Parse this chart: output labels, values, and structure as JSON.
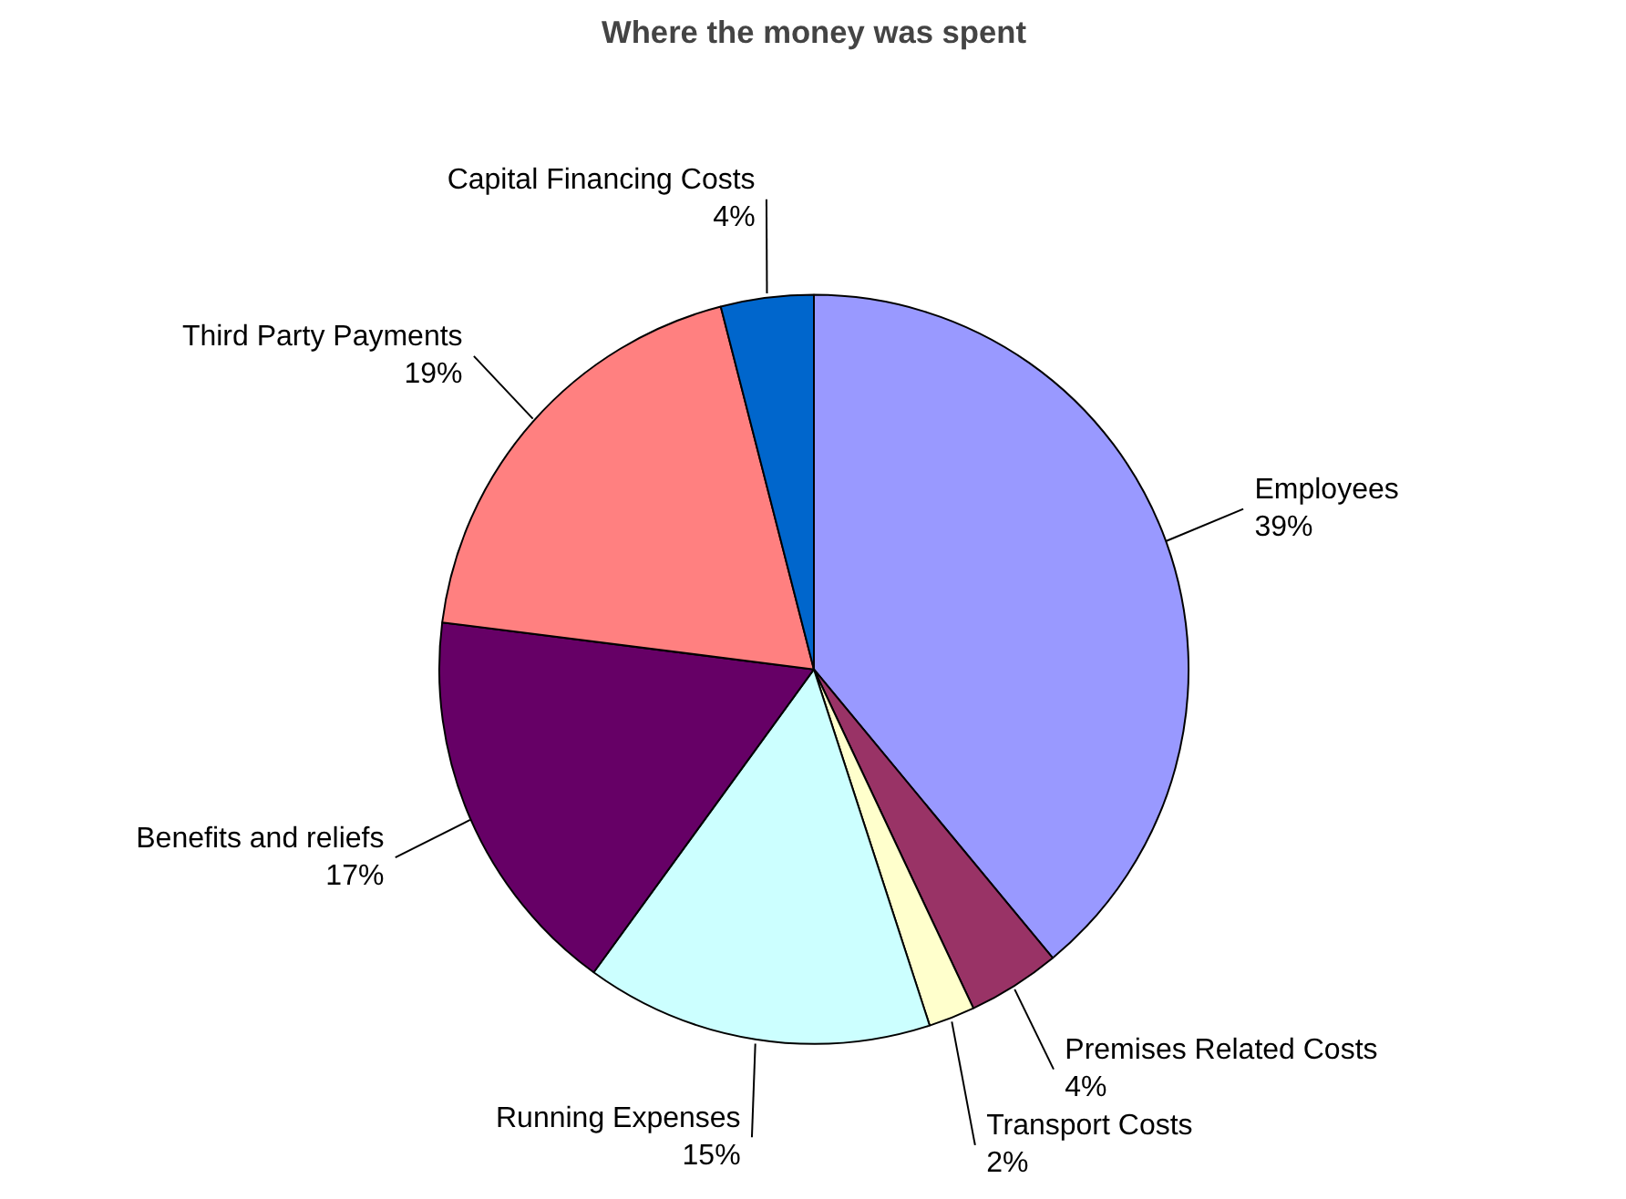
{
  "chart_data": {
    "type": "pie",
    "title": "Where the money was spent",
    "categories": [
      "Employees",
      "Premises Related Costs",
      "Transport Costs",
      "Running Expenses",
      "Benefits and reliefs",
      "Third Party Payments",
      "Capital Financing Costs"
    ],
    "values": [
      39,
      4,
      2,
      15,
      17,
      19,
      4
    ],
    "value_labels": [
      "39%",
      "4%",
      "2%",
      "15%",
      "17%",
      "19%",
      "4%"
    ],
    "colors": [
      "#9999ff",
      "#993366",
      "#ffffcc",
      "#ccffff",
      "#660066",
      "#ff8080",
      "#0066cc"
    ],
    "legend": false
  }
}
